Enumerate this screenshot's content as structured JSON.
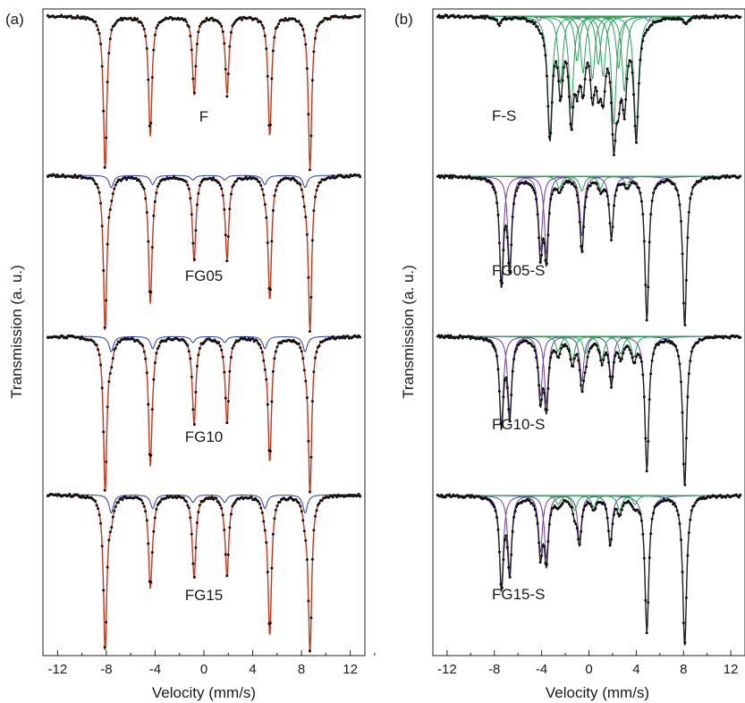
{
  "chart_data": [
    {
      "type": "line",
      "panel_label": "(a)",
      "xlabel": "Velocity (mm/s)",
      "ylabel": "Transmission (a. u.)",
      "xlim": [
        -13.2,
        13.2
      ],
      "xticks": [
        -12,
        -8,
        -4,
        0,
        4,
        8,
        12
      ],
      "xtick_labels": [
        "-12",
        "-8",
        "-4",
        "0",
        "4",
        "8",
        "12"
      ],
      "colors": {
        "data": "#111111",
        "total_fit": "#c0391b",
        "sextet_main": "#c0391b",
        "sextet_minor": "#2a3cb5"
      },
      "samples": [
        {
          "name": "F",
          "main_sextet": {
            "lines": [
              -8.1,
              -4.4,
              -0.8,
              1.9,
              5.4,
              8.7
            ],
            "depths": [
              1.0,
              0.78,
              0.51,
              0.51,
              0.78,
              1.0
            ]
          },
          "minor_sextet": {
            "lines": [
              -8.1,
              -4.4,
              -0.8,
              1.9,
              5.4,
              8.7
            ],
            "depths": [
              0.0,
              0.0,
              0.0,
              0.0,
              0.0,
              0.0
            ]
          }
        },
        {
          "name": "FG05",
          "main_sextet": {
            "lines": [
              -8.1,
              -4.4,
              -0.8,
              1.9,
              5.4,
              8.7
            ],
            "depths": [
              1.0,
              0.8,
              0.53,
              0.53,
              0.8,
              1.0
            ]
          },
          "minor_sextet": {
            "lines": [
              -7.6,
              -4.2,
              -0.9,
              1.7,
              5.0,
              8.3
            ],
            "depths": [
              0.08,
              0.06,
              0.03,
              0.03,
              0.06,
              0.08
            ]
          }
        },
        {
          "name": "FG10",
          "main_sextet": {
            "lines": [
              -8.1,
              -4.4,
              -0.8,
              1.9,
              5.4,
              8.7
            ],
            "depths": [
              1.0,
              0.8,
              0.54,
              0.54,
              0.8,
              1.0
            ]
          },
          "minor_sextet": {
            "lines": [
              -7.6,
              -4.2,
              -0.9,
              1.7,
              5.0,
              8.3
            ],
            "depths": [
              0.1,
              0.08,
              0.04,
              0.04,
              0.08,
              0.1
            ]
          }
        },
        {
          "name": "FG15",
          "main_sextet": {
            "lines": [
              -8.1,
              -4.4,
              -0.8,
              1.9,
              5.4,
              8.7
            ],
            "depths": [
              1.0,
              0.56,
              0.5,
              0.5,
              0.9,
              1.0
            ]
          },
          "minor_sextet": {
            "lines": [
              -7.6,
              -4.2,
              -0.9,
              1.7,
              5.0,
              8.3
            ],
            "depths": [
              0.12,
              0.09,
              0.05,
              0.05,
              0.09,
              0.12
            ]
          }
        }
      ]
    },
    {
      "type": "line",
      "panel_label": "(b)",
      "xlabel": "Velocity (mm/s)",
      "ylabel": "Transmission (a. u.)",
      "xlim": [
        -13.2,
        13.2
      ],
      "xticks": [
        -12,
        -8,
        -4,
        0,
        4,
        8,
        12
      ],
      "xtick_labels": [
        "-12",
        "-8",
        "-4",
        "0",
        "4",
        "8",
        "12"
      ],
      "colors": {
        "data": "#111111",
        "total_fit": "#222222",
        "sextet_components": "#6a3fa8",
        "doublet_components": "#2aa25a"
      },
      "samples": [
        {
          "name": "F-S",
          "purple_lines": [
            -7.6,
            -4.2,
            -0.9,
            1.7,
            5.0,
            8.2
          ],
          "purple_depths": [
            0.05,
            0.03,
            0.02,
            0.02,
            0.03,
            0.05
          ],
          "green_lines": [
            -3.3,
            -1.5,
            0.3,
            2.1,
            4.0,
            -2.4,
            -0.5,
            1.2,
            3.0,
            -1.0,
            0.8,
            2.5
          ],
          "green_depths": [
            0.78,
            0.62,
            0.42,
            0.72,
            0.78,
            0.45,
            0.38,
            0.4,
            0.5,
            0.3,
            0.32,
            0.35
          ]
        },
        {
          "name": "FG05-S",
          "purple_lines": [
            -7.4,
            -6.7,
            -4.1,
            -3.6,
            -0.6,
            1.9,
            4.9,
            8.1
          ],
          "purple_depths": [
            0.7,
            0.6,
            0.5,
            0.52,
            0.4,
            0.4,
            0.95,
            1.0
          ],
          "green_lines": [
            -2.5,
            -0.6,
            1.0,
            3.2
          ],
          "green_depths": [
            0.08,
            0.1,
            0.08,
            0.06
          ]
        },
        {
          "name": "FG10-S",
          "purple_lines": [
            -7.4,
            -6.7,
            -4.1,
            -3.6,
            -0.6,
            1.9,
            4.9,
            8.1
          ],
          "purple_depths": [
            0.58,
            0.52,
            0.4,
            0.45,
            0.3,
            0.3,
            0.88,
            1.0
          ],
          "green_lines": [
            -2.6,
            -1.4,
            -0.3,
            1.1,
            2.7,
            3.8
          ],
          "green_depths": [
            0.1,
            0.16,
            0.12,
            0.15,
            0.12,
            0.14
          ]
        },
        {
          "name": "FG15-S",
          "purple_lines": [
            -7.4,
            -6.7,
            -4.1,
            -3.6,
            -0.8,
            1.8,
            4.9,
            8.1
          ],
          "purple_depths": [
            0.6,
            0.5,
            0.38,
            0.42,
            0.3,
            0.32,
            0.9,
            1.0
          ],
          "green_lines": [
            -2.6,
            -1.2,
            0.4,
            2.6,
            3.9
          ],
          "green_depths": [
            0.06,
            0.1,
            0.08,
            0.1,
            0.06
          ]
        }
      ]
    }
  ]
}
